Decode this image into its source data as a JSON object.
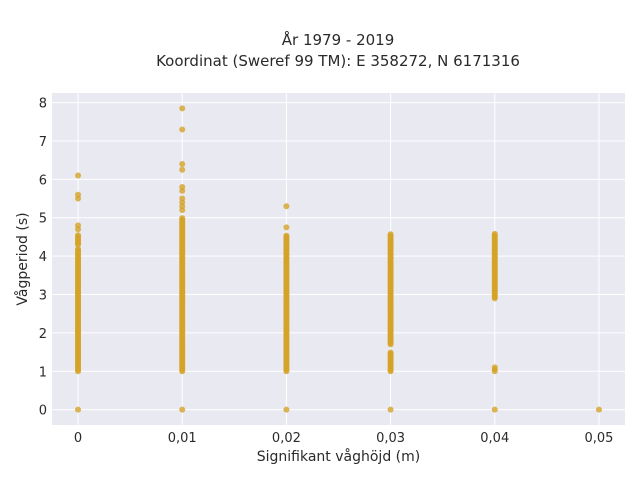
{
  "chart_data": {
    "type": "scatter",
    "title": "År 1979 - 2019",
    "subtitle": "Koordinat (Sweref 99 TM): E 358272, N 6171316",
    "xlabel": "Signifikant våghöjd (m)",
    "ylabel": "Vågperiod (s)",
    "xlim": [
      -0.0025,
      0.0525
    ],
    "ylim": [
      -0.4,
      8.25
    ],
    "xticks": [
      0,
      0.01,
      0.02,
      0.03,
      0.04,
      0.05
    ],
    "xtick_labels": [
      "0",
      "0,01",
      "0,02",
      "0,03",
      "0,04",
      "0,05"
    ],
    "yticks": [
      0,
      1,
      2,
      3,
      4,
      5,
      6,
      7,
      8
    ],
    "ytick_labels": [
      "0",
      "1",
      "2",
      "3",
      "4",
      "5",
      "6",
      "7",
      "8"
    ],
    "grid": true,
    "marker_color": "#d4a227",
    "background_color": "#e9e9f1",
    "series": [
      {
        "columns": [
          {
            "x": 0,
            "ranges": [
              [
                1.0,
                4.2
              ],
              [
                4.3,
                4.55
              ]
            ],
            "points": [
              0,
              4.7,
              4.8,
              5.5,
              5.6,
              6.1
            ]
          },
          {
            "x": 0.01,
            "ranges": [
              [
                1.0,
                5.0
              ]
            ],
            "points": [
              0,
              5.2,
              5.3,
              5.4,
              5.5,
              5.7,
              5.8,
              6.25,
              6.4,
              7.3,
              7.85
            ]
          },
          {
            "x": 0.02,
            "ranges": [
              [
                1.0,
                4.55
              ]
            ],
            "points": [
              0,
              4.75,
              5.3
            ]
          },
          {
            "x": 0.03,
            "ranges": [
              [
                1.0,
                1.5
              ],
              [
                1.7,
                4.6
              ]
            ],
            "points": [
              0
            ]
          },
          {
            "x": 0.04,
            "ranges": [
              [
                2.9,
                4.6
              ]
            ],
            "points": [
              0,
              1.0,
              1.05,
              1.1
            ]
          },
          {
            "x": 0.05,
            "ranges": [],
            "points": [
              0
            ]
          }
        ]
      }
    ]
  }
}
